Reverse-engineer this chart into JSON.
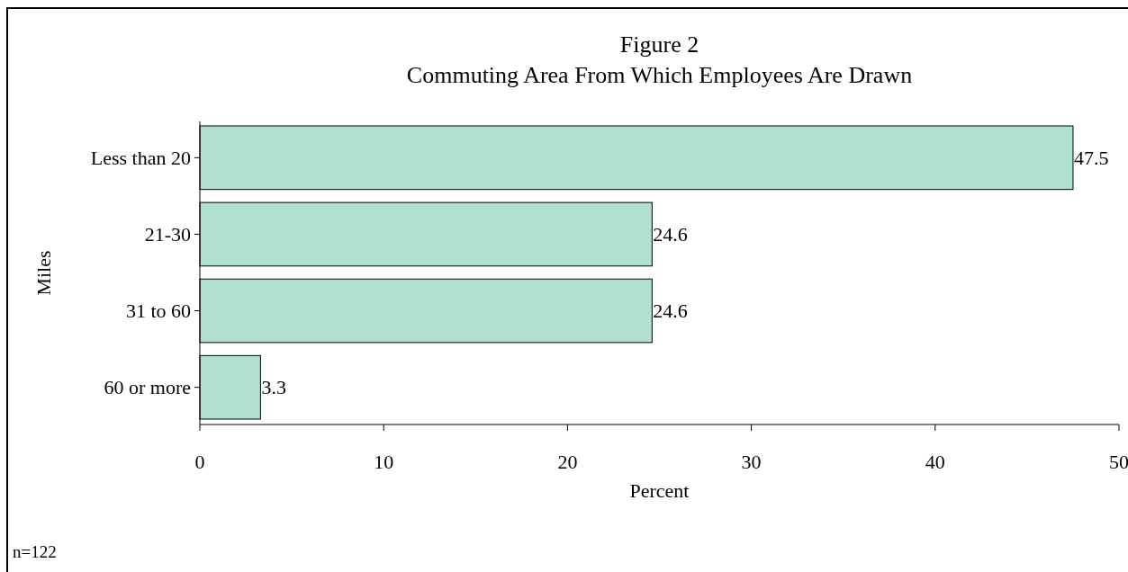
{
  "chart_data": {
    "type": "bar",
    "orientation": "horizontal",
    "title": "Figure 2",
    "subtitle": "Commuting Area From Which Employees Are Drawn",
    "xlabel": "Percent",
    "ylabel": "Miles",
    "categories": [
      "Less than 20",
      "21-30",
      "31 to 60",
      "60 or more"
    ],
    "values": [
      47.5,
      24.6,
      24.6,
      3.3
    ],
    "color": "#afe0d2",
    "data_labels": true,
    "xlim": [
      0,
      50
    ],
    "xticks": [
      0,
      10,
      20,
      30,
      40,
      50
    ],
    "annotations": [
      "n=122"
    ]
  }
}
